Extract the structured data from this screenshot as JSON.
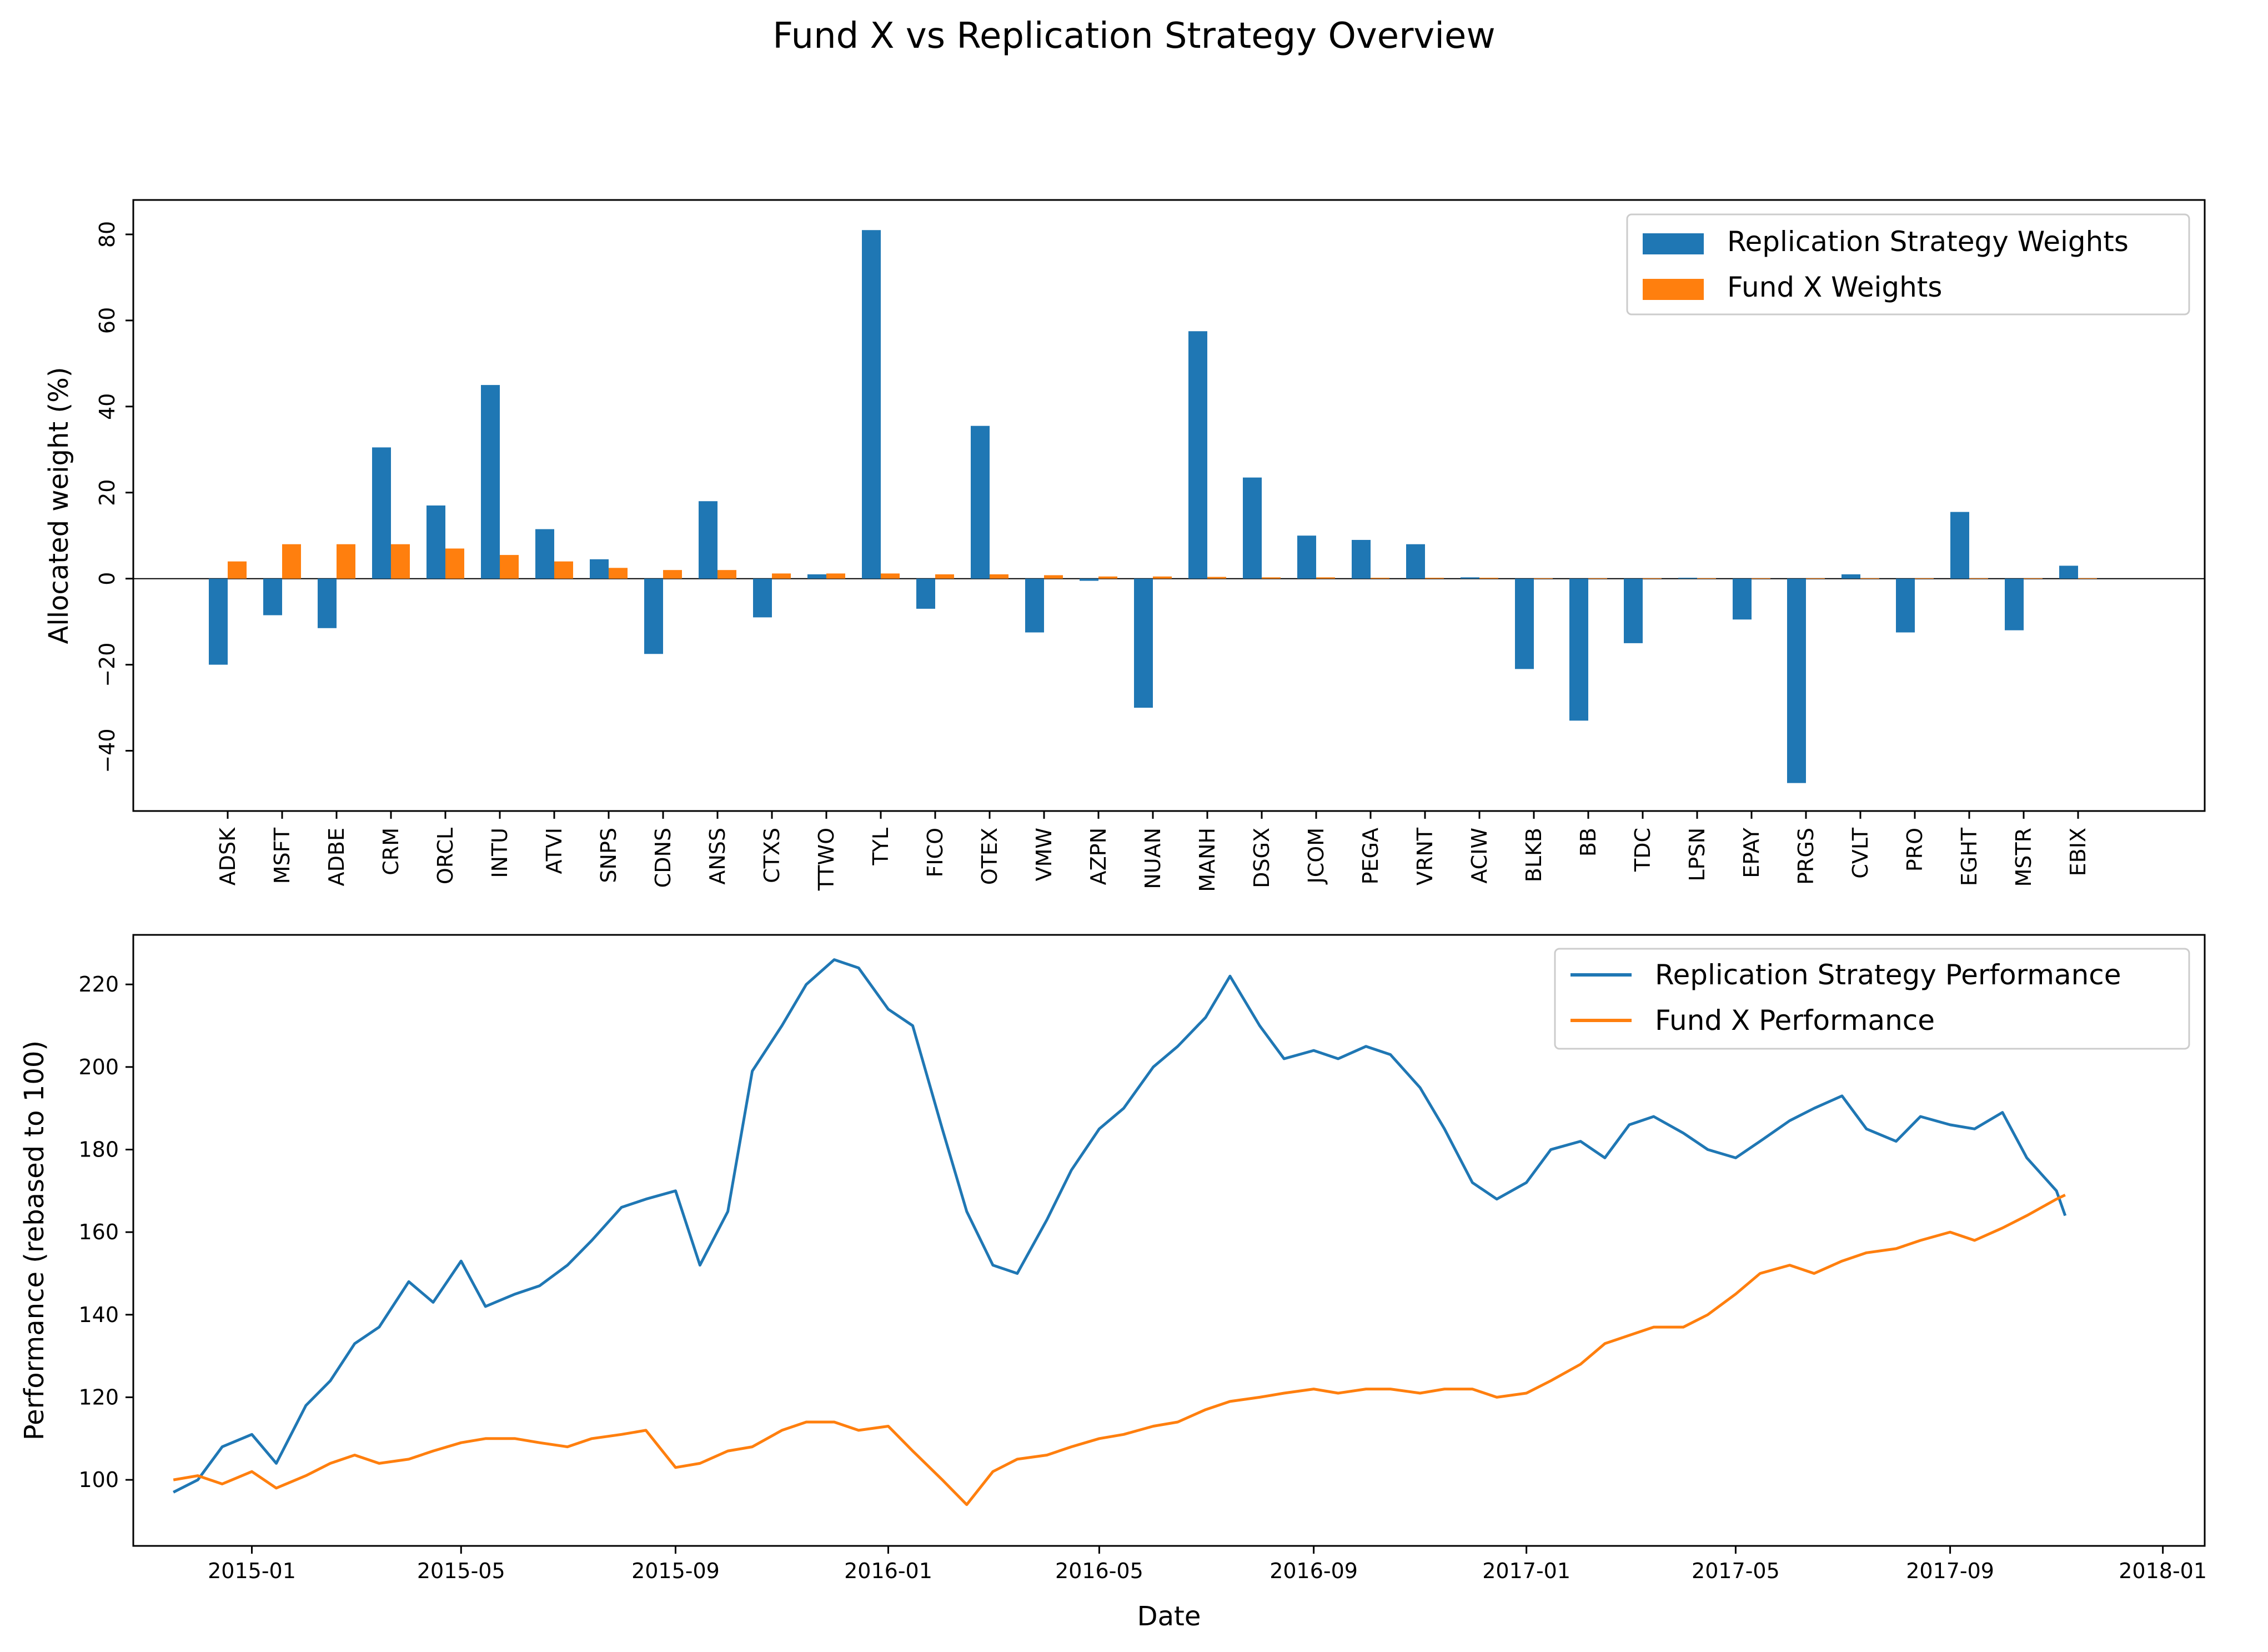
{
  "title": "Fund X vs Replication Strategy Overview",
  "colors": {
    "blue": "#1f77b4",
    "orange": "#ff7f0e"
  },
  "chart_data": [
    {
      "type": "bar",
      "ylabel": "Allocated weight (%)",
      "xlabel": "",
      "ylim": [
        -54,
        88
      ],
      "yticks": [
        -40,
        -20,
        0,
        20,
        40,
        60,
        80
      ],
      "ytick_labels": [
        "−40",
        "−20",
        "0",
        "20",
        "40",
        "60",
        "80"
      ],
      "legend_position": "top-right",
      "categories": [
        "ADSK",
        "MSFT",
        "ADBE",
        "CRM",
        "ORCL",
        "INTU",
        "ATVI",
        "SNPS",
        "CDNS",
        "ANSS",
        "CTXS",
        "TTWO",
        "TYL",
        "FICO",
        "OTEX",
        "VMW",
        "AZPN",
        "NUAN",
        "MANH",
        "DSGX",
        "JCOM",
        "PEGA",
        "VRNT",
        "ACIW",
        "BLKB",
        "BB",
        "TDC",
        "LPSN",
        "EPAY",
        "PRGS",
        "CVLT",
        "PRO",
        "EGHT",
        "MSTR",
        "EBIX"
      ],
      "series": [
        {
          "name": "Replication Strategy Weights",
          "color": "#1f77b4",
          "values": [
            -20,
            -8.5,
            -11.5,
            30.5,
            17,
            45,
            11.5,
            4.5,
            -17.5,
            18,
            -9,
            1,
            81,
            -7,
            35.5,
            -12.5,
            -0.5,
            -30,
            57.5,
            23.5,
            10,
            9,
            8,
            0.3,
            -21,
            -33,
            -15,
            0.2,
            -9.5,
            -47.5,
            1,
            -12.5,
            15.5,
            -12,
            3
          ]
        },
        {
          "name": "Fund X Weights",
          "color": "#ff7f0e",
          "values": [
            4,
            8,
            8,
            8,
            7,
            5.5,
            4,
            2.5,
            2,
            2,
            1.2,
            1.2,
            1.2,
            1,
            1,
            0.8,
            0.5,
            0.5,
            0.4,
            0.3,
            0.3,
            0.2,
            0.2,
            0.2,
            0.1,
            0.1,
            0.1,
            0.1,
            0.1,
            0.1,
            0.1,
            0.1,
            0.1,
            0.1,
            0.1
          ]
        }
      ]
    },
    {
      "type": "line",
      "xlabel": "Date",
      "ylabel": "Performance (rebased to 100)",
      "xlim": [
        "2014-10-25",
        "2018-01-25"
      ],
      "ylim": [
        84,
        232
      ],
      "xticks": [
        "2015-01",
        "2015-05",
        "2015-09",
        "2016-01",
        "2016-05",
        "2016-09",
        "2017-01",
        "2017-05",
        "2017-09",
        "2018-01"
      ],
      "yticks": [
        100,
        120,
        140,
        160,
        180,
        200,
        220
      ],
      "legend_position": "top-right",
      "series": [
        {
          "name": "Replication Strategy Performance",
          "color": "#1f77b4",
          "x": [
            "2014-11-17",
            "2014-12-01",
            "2014-12-15",
            "2015-01-01",
            "2015-01-15",
            "2015-02-01",
            "2015-02-15",
            "2015-03-01",
            "2015-03-15",
            "2015-04-01",
            "2015-04-15",
            "2015-05-01",
            "2015-05-15",
            "2015-06-01",
            "2015-06-15",
            "2015-07-01",
            "2015-07-15",
            "2015-08-01",
            "2015-08-15",
            "2015-09-01",
            "2015-09-15",
            "2015-10-01",
            "2015-10-15",
            "2015-11-01",
            "2015-11-15",
            "2015-12-01",
            "2015-12-15",
            "2016-01-01",
            "2016-01-15",
            "2016-02-01",
            "2016-02-15",
            "2016-03-01",
            "2016-03-15",
            "2016-04-01",
            "2016-04-15",
            "2016-05-01",
            "2016-05-15",
            "2016-06-01",
            "2016-06-15",
            "2016-07-01",
            "2016-07-15",
            "2016-08-01",
            "2016-08-15",
            "2016-09-01",
            "2016-09-15",
            "2016-10-01",
            "2016-10-15",
            "2016-11-01",
            "2016-11-15",
            "2016-12-01",
            "2016-12-15",
            "2017-01-01",
            "2017-01-15",
            "2017-02-01",
            "2017-02-15",
            "2017-03-01",
            "2017-03-15",
            "2017-04-01",
            "2017-04-15",
            "2017-05-01",
            "2017-05-15",
            "2017-06-01",
            "2017-06-15",
            "2017-07-01",
            "2017-07-15",
            "2017-08-01",
            "2017-08-15",
            "2017-09-01",
            "2017-09-15",
            "2017-10-01",
            "2017-10-15",
            "2017-11-01",
            "2017-11-06"
          ],
          "y": [
            97,
            100,
            108,
            111,
            104,
            118,
            124,
            133,
            137,
            148,
            143,
            153,
            142,
            145,
            147,
            152,
            158,
            166,
            168,
            170,
            152,
            165,
            199,
            210,
            220,
            226,
            224,
            214,
            210,
            185,
            165,
            152,
            150,
            163,
            175,
            185,
            190,
            200,
            205,
            212,
            222,
            210,
            202,
            204,
            202,
            205,
            203,
            195,
            185,
            172,
            168,
            172,
            180,
            182,
            178,
            186,
            188,
            184,
            180,
            178,
            182,
            187,
            190,
            193,
            185,
            182,
            188,
            186,
            185,
            189,
            178,
            170,
            164
          ]
        },
        {
          "name": "Fund X Performance",
          "color": "#ff7f0e",
          "x": [
            "2014-11-17",
            "2014-12-01",
            "2014-12-15",
            "2015-01-01",
            "2015-01-15",
            "2015-02-01",
            "2015-02-15",
            "2015-03-01",
            "2015-03-15",
            "2015-04-01",
            "2015-04-15",
            "2015-05-01",
            "2015-05-15",
            "2015-06-01",
            "2015-06-15",
            "2015-07-01",
            "2015-07-15",
            "2015-08-01",
            "2015-08-15",
            "2015-09-01",
            "2015-09-15",
            "2015-10-01",
            "2015-10-15",
            "2015-11-01",
            "2015-11-15",
            "2015-12-01",
            "2015-12-15",
            "2016-01-01",
            "2016-01-15",
            "2016-02-01",
            "2016-02-15",
            "2016-03-01",
            "2016-03-15",
            "2016-04-01",
            "2016-04-15",
            "2016-05-01",
            "2016-05-15",
            "2016-06-01",
            "2016-06-15",
            "2016-07-01",
            "2016-07-15",
            "2016-08-01",
            "2016-08-15",
            "2016-09-01",
            "2016-09-15",
            "2016-10-01",
            "2016-10-15",
            "2016-11-01",
            "2016-11-15",
            "2016-12-01",
            "2016-12-15",
            "2017-01-01",
            "2017-01-15",
            "2017-02-01",
            "2017-02-15",
            "2017-03-01",
            "2017-03-15",
            "2017-04-01",
            "2017-04-15",
            "2017-05-01",
            "2017-05-15",
            "2017-06-01",
            "2017-06-15",
            "2017-07-01",
            "2017-07-15",
            "2017-08-01",
            "2017-08-15",
            "2017-09-01",
            "2017-09-15",
            "2017-10-01",
            "2017-10-15",
            "2017-11-01",
            "2017-11-06"
          ],
          "y": [
            100,
            101,
            99,
            102,
            98,
            101,
            104,
            106,
            104,
            105,
            107,
            109,
            110,
            110,
            109,
            108,
            110,
            111,
            112,
            103,
            104,
            107,
            108,
            112,
            114,
            114,
            112,
            113,
            107,
            100,
            94,
            102,
            105,
            106,
            108,
            110,
            111,
            113,
            114,
            117,
            119,
            120,
            121,
            122,
            121,
            122,
            122,
            121,
            122,
            122,
            120,
            121,
            124,
            128,
            133,
            135,
            137,
            137,
            140,
            145,
            150,
            152,
            150,
            153,
            155,
            156,
            158,
            160,
            158,
            161,
            164,
            168,
            169
          ]
        }
      ]
    }
  ]
}
